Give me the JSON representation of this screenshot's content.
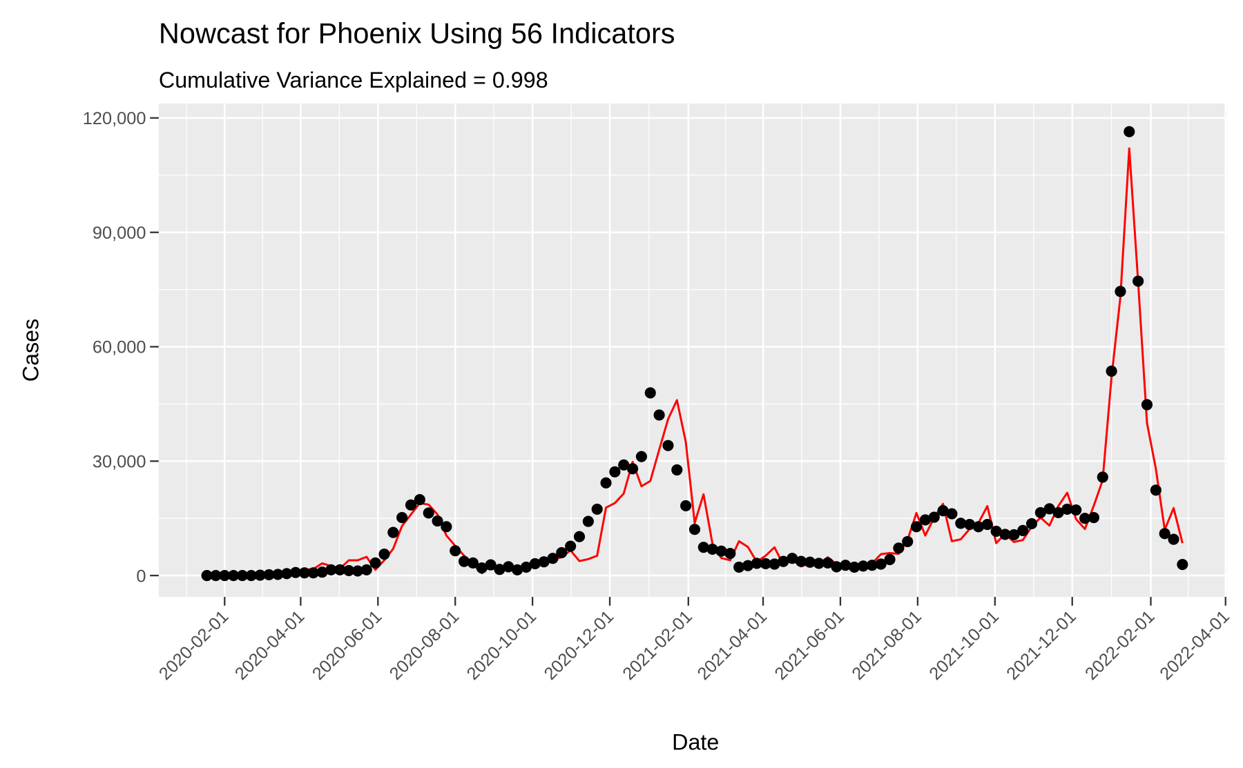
{
  "chart_data": {
    "type": "line",
    "title": "Nowcast for Phoenix Using 56 Indicators",
    "subtitle": "Cumulative Variance Explained = 0.998",
    "x_label": "Date",
    "y_label": "Cases",
    "x": [
      "2020-01-18",
      "2020-01-25",
      "2020-02-01",
      "2020-02-08",
      "2020-02-15",
      "2020-02-22",
      "2020-02-29",
      "2020-03-07",
      "2020-03-14",
      "2020-03-21",
      "2020-03-28",
      "2020-04-04",
      "2020-04-11",
      "2020-04-18",
      "2020-04-25",
      "2020-05-02",
      "2020-05-09",
      "2020-05-16",
      "2020-05-23",
      "2020-05-30",
      "2020-06-06",
      "2020-06-13",
      "2020-06-20",
      "2020-06-27",
      "2020-07-04",
      "2020-07-11",
      "2020-07-18",
      "2020-07-25",
      "2020-08-01",
      "2020-08-08",
      "2020-08-15",
      "2020-08-22",
      "2020-08-29",
      "2020-09-05",
      "2020-09-12",
      "2020-09-19",
      "2020-09-26",
      "2020-10-03",
      "2020-10-10",
      "2020-10-17",
      "2020-10-24",
      "2020-10-31",
      "2020-11-07",
      "2020-11-14",
      "2020-11-21",
      "2020-11-28",
      "2020-12-05",
      "2020-12-12",
      "2020-12-19",
      "2020-12-26",
      "2021-01-02",
      "2021-01-09",
      "2021-01-16",
      "2021-01-23",
      "2021-01-30",
      "2021-02-06",
      "2021-02-13",
      "2021-02-20",
      "2021-02-27",
      "2021-03-06",
      "2021-03-13",
      "2021-03-20",
      "2021-03-27",
      "2021-04-03",
      "2021-04-10",
      "2021-04-17",
      "2021-04-24",
      "2021-05-01",
      "2021-05-08",
      "2021-05-15",
      "2021-05-22",
      "2021-05-29",
      "2021-06-05",
      "2021-06-12",
      "2021-06-19",
      "2021-06-26",
      "2021-07-03",
      "2021-07-10",
      "2021-07-17",
      "2021-07-24",
      "2021-07-31",
      "2021-08-07",
      "2021-08-14",
      "2021-08-21",
      "2021-08-28",
      "2021-09-04",
      "2021-09-11",
      "2021-09-18",
      "2021-09-25",
      "2021-10-02",
      "2021-10-09",
      "2021-10-16",
      "2021-10-23",
      "2021-10-30",
      "2021-11-06",
      "2021-11-13",
      "2021-11-20",
      "2021-11-27",
      "2021-12-04",
      "2021-12-11",
      "2021-12-18",
      "2021-12-25",
      "2022-01-01",
      "2022-01-08",
      "2022-01-15",
      "2022-01-22",
      "2022-01-29",
      "2022-02-05",
      "2022-02-12",
      "2022-02-19",
      "2022-02-26"
    ],
    "series": [
      {
        "color": "#ff0000",
        "mark": "line",
        "values": [
          0,
          0,
          0,
          0,
          0,
          0,
          100,
          200,
          300,
          500,
          900,
          1500,
          1700,
          3200,
          2500,
          1800,
          4000,
          4000,
          4900,
          1500,
          4000,
          7000,
          13000,
          16000,
          19000,
          18600,
          16000,
          10500,
          7800,
          5200,
          3000,
          600,
          2700,
          1800,
          2500,
          2000,
          1600,
          2600,
          3500,
          4200,
          4800,
          6600,
          3800,
          4300,
          5200,
          17800,
          19000,
          21500,
          29800,
          23400,
          24800,
          33000,
          41000,
          46000,
          35000,
          13800,
          21300,
          8400,
          4600,
          4000,
          9000,
          7500,
          3600,
          5200,
          7400,
          2800,
          4100,
          2400,
          3200,
          2700,
          4800,
          3000,
          2200,
          2600,
          2200,
          3200,
          5600,
          5900,
          5700,
          9300,
          16400,
          10500,
          15200,
          18800,
          9000,
          9500,
          12200,
          13800,
          18200,
          8500,
          10900,
          8800,
          9300,
          12800,
          15200,
          13100,
          18200,
          21700,
          14800,
          12200,
          18300,
          25000,
          52000,
          73000,
          112000,
          77000,
          40000,
          28000,
          12000,
          17700,
          8500
        ]
      },
      {
        "color": "#000000",
        "mark": "point",
        "values": [
          0,
          0,
          0,
          0,
          0,
          0,
          100,
          200,
          300,
          500,
          800,
          700,
          700,
          900,
          1500,
          1500,
          1300,
          1200,
          1500,
          3300,
          5600,
          11300,
          15200,
          18500,
          19900,
          16400,
          14300,
          12800,
          6500,
          3700,
          3300,
          2000,
          2800,
          1600,
          2300,
          1500,
          2200,
          3100,
          3600,
          4500,
          6000,
          7700,
          10200,
          14200,
          17400,
          24300,
          27200,
          29000,
          28000,
          31200,
          47900,
          42100,
          34100,
          27700,
          18300,
          12100,
          7400,
          6900,
          6400,
          5800,
          2200,
          2600,
          3200,
          3100,
          3000,
          3700,
          4500,
          3700,
          3500,
          3200,
          3300,
          2300,
          2700,
          2200,
          2500,
          2700,
          3000,
          4200,
          7200,
          8900,
          12800,
          14600,
          15300,
          17000,
          16200,
          13700,
          13400,
          12800,
          13400,
          11600,
          10800,
          10700,
          11800,
          13600,
          16500,
          17500,
          16500,
          17400,
          17200,
          15000,
          15200,
          25800,
          53600,
          74500,
          116400,
          77200,
          44800,
          22400,
          11000,
          9500,
          2900
        ]
      }
    ],
    "xlim": [
      "2019-12-11",
      "2022-04-02"
    ],
    "xticks": [
      "2020-02-01",
      "2020-04-01",
      "2020-06-01",
      "2020-08-01",
      "2020-10-01",
      "2020-12-01",
      "2021-02-01",
      "2021-04-01",
      "2021-06-01",
      "2021-08-01",
      "2021-10-01",
      "2021-12-01",
      "2022-02-01",
      "2022-04-01"
    ],
    "ylim": [
      -5600,
      123800
    ],
    "yticks": [
      0,
      {
        "value": 30000,
        "label": "30,000"
      },
      {
        "value": 60000,
        "label": "60,000"
      },
      {
        "value": 90000,
        "label": "90,000"
      },
      {
        "value": 120000,
        "label": "120,000"
      }
    ],
    "grid": true,
    "panel_color": "#ebebeb"
  }
}
